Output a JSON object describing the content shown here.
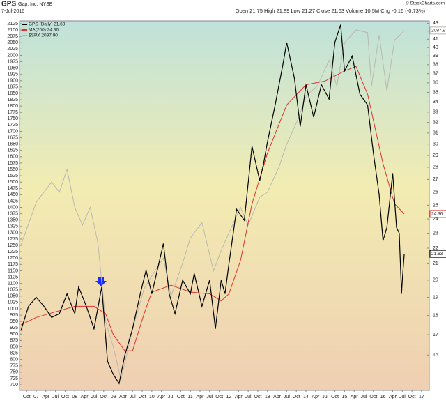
{
  "chart_data": {
    "type": "line",
    "title": "GPS",
    "subtitle": "Gap, Inc. NYSE",
    "date": "7-Jul-2016",
    "quote": "Open 21.75  High 21.89  Low 21.27  Close 21.63  Volume 10.5M  Chg -0.16 (-0.73%)",
    "source": "© StockCharts.com",
    "grid": false,
    "legend": "top-left",
    "xlim": [
      2006.566,
      2017.2
    ],
    "xticks": [
      {
        "value": 2006.75,
        "label": "Oct"
      },
      {
        "value": 2007,
        "label": "07"
      },
      {
        "value": 2007.25,
        "label": "Apr"
      },
      {
        "value": 2007.5,
        "label": "Jul"
      },
      {
        "value": 2007.75,
        "label": "Oct"
      },
      {
        "value": 2008,
        "label": "08"
      },
      {
        "value": 2008.25,
        "label": "Apr"
      },
      {
        "value": 2008.5,
        "label": "Jul"
      },
      {
        "value": 2008.75,
        "label": "Oct"
      },
      {
        "value": 2009,
        "label": "09"
      },
      {
        "value": 2009.25,
        "label": "Apr"
      },
      {
        "value": 2009.5,
        "label": "Jul"
      },
      {
        "value": 2009.75,
        "label": "Oct"
      },
      {
        "value": 2010,
        "label": "10"
      },
      {
        "value": 2010.25,
        "label": "Apr"
      },
      {
        "value": 2010.5,
        "label": "Jul"
      },
      {
        "value": 2010.75,
        "label": "Oct"
      },
      {
        "value": 2011,
        "label": "11"
      },
      {
        "value": 2011.25,
        "label": "Apr"
      },
      {
        "value": 2011.5,
        "label": "Jul"
      },
      {
        "value": 2011.75,
        "label": "Oct"
      },
      {
        "value": 2012,
        "label": "12"
      },
      {
        "value": 2012.25,
        "label": "Apr"
      },
      {
        "value": 2012.5,
        "label": "Jul"
      },
      {
        "value": 2012.75,
        "label": "Oct"
      },
      {
        "value": 2013,
        "label": "13"
      },
      {
        "value": 2013.25,
        "label": "Apr"
      },
      {
        "value": 2013.5,
        "label": "Jul"
      },
      {
        "value": 2013.75,
        "label": "Oct"
      },
      {
        "value": 2014,
        "label": "14"
      },
      {
        "value": 2014.25,
        "label": "Apr"
      },
      {
        "value": 2014.5,
        "label": "Jul"
      },
      {
        "value": 2014.75,
        "label": "Oct"
      },
      {
        "value": 2015,
        "label": "15"
      },
      {
        "value": 2015.25,
        "label": "Apr"
      },
      {
        "value": 2015.5,
        "label": "Jul"
      },
      {
        "value": 2015.75,
        "label": "Oct"
      },
      {
        "value": 2016,
        "label": "16"
      },
      {
        "value": 2016.25,
        "label": "Apr"
      },
      {
        "value": 2016.5,
        "label": "Jul"
      },
      {
        "value": 2016.75,
        "label": "Oct"
      },
      {
        "value": 2017,
        "label": "17"
      }
    ],
    "ylim": [
      678,
      2136
    ],
    "yticks": [
      700,
      725,
      750,
      775,
      800,
      825,
      850,
      875,
      900,
      925,
      950,
      975,
      1000,
      1025,
      1050,
      1075,
      1100,
      1125,
      1150,
      1175,
      1200,
      1225,
      1250,
      1275,
      1300,
      1325,
      1350,
      1375,
      1400,
      1425,
      1450,
      1475,
      1500,
      1525,
      1550,
      1575,
      1600,
      1625,
      1650,
      1675,
      1700,
      1725,
      1750,
      1775,
      1800,
      1825,
      1850,
      1875,
      1900,
      1925,
      1950,
      1975,
      2000,
      2025,
      2050,
      2075,
      2100,
      2125
    ],
    "y2lim": [
      14.4,
      43.3
    ],
    "y2log": true,
    "y2ticks": [
      16,
      17,
      18,
      19,
      20,
      21,
      22,
      23,
      24,
      25,
      26,
      27,
      28,
      29,
      30,
      31,
      32,
      33,
      34,
      35,
      36,
      37,
      38,
      39,
      40,
      41,
      42,
      43
    ],
    "series": [
      {
        "name": "$SPX 2097.90",
        "color": "#b8b8b0",
        "axis": "y",
        "end_label": "2097.9",
        "x": [
          2006.6,
          2007.0,
          2007.4,
          2007.6,
          2007.8,
          2008.0,
          2008.2,
          2008.4,
          2008.6,
          2008.8,
          2009.0,
          2009.2,
          2009.5,
          2009.8,
          2010.0,
          2010.3,
          2010.5,
          2010.8,
          2011.0,
          2011.3,
          2011.6,
          2011.8,
          2012.0,
          2012.3,
          2012.5,
          2012.8,
          2013.0,
          2013.3,
          2013.5,
          2013.8,
          2014.0,
          2014.3,
          2014.6,
          2014.8,
          2015.0,
          2015.3,
          2015.6,
          2015.7,
          2015.9,
          2016.1,
          2016.3,
          2016.55
        ],
        "values": [
          1250,
          1420,
          1500,
          1460,
          1550,
          1400,
          1330,
          1400,
          1260,
          950,
          850,
          720,
          920,
          1080,
          1130,
          1200,
          1050,
          1180,
          1280,
          1340,
          1150,
          1230,
          1300,
          1400,
          1330,
          1440,
          1460,
          1560,
          1650,
          1750,
          1840,
          1880,
          1980,
          1880,
          2050,
          2100,
          2090,
          1880,
          2080,
          1860,
          2060,
          2097.9
        ]
      },
      {
        "name": "MA(200) 24.36",
        "color": "#e03030",
        "axis": "y2",
        "end_label": "24.36",
        "x": [
          2006.6,
          2007.0,
          2007.5,
          2008.0,
          2008.5,
          2008.8,
          2009.0,
          2009.3,
          2009.5,
          2009.8,
          2010.0,
          2010.5,
          2011.0,
          2011.5,
          2011.8,
          2012.0,
          2012.3,
          2012.6,
          2013.0,
          2013.5,
          2014.0,
          2014.5,
          2015.0,
          2015.3,
          2015.6,
          2016.0,
          2016.3,
          2016.55
        ],
        "values": [
          17.5,
          17.9,
          18.2,
          18.5,
          18.5,
          18.1,
          17.0,
          16.2,
          16.2,
          18.1,
          19.3,
          19.7,
          19.3,
          19.2,
          18.8,
          19.2,
          21.2,
          25.1,
          29.2,
          33.7,
          35.8,
          36.2,
          37.3,
          37.8,
          34.8,
          28.3,
          25.1,
          24.36
        ]
      },
      {
        "name": "GPS (Daily) 21.63",
        "color": "#000000",
        "axis": "y2",
        "end_label": "21.63",
        "x": [
          2006.6,
          2006.8,
          2007.0,
          2007.2,
          2007.4,
          2007.6,
          2007.8,
          2008.0,
          2008.1,
          2008.3,
          2008.5,
          2008.7,
          2008.85,
          2009.0,
          2009.15,
          2009.3,
          2009.5,
          2009.7,
          2009.85,
          2010.0,
          2010.2,
          2010.3,
          2010.45,
          2010.6,
          2010.8,
          2011.0,
          2011.1,
          2011.3,
          2011.5,
          2011.65,
          2011.8,
          2011.9,
          2012.0,
          2012.2,
          2012.4,
          2012.6,
          2012.8,
          2012.9,
          2013.0,
          2013.2,
          2013.4,
          2013.5,
          2013.7,
          2013.85,
          2014.0,
          2014.2,
          2014.4,
          2014.6,
          2014.75,
          2014.9,
          2015.0,
          2015.2,
          2015.4,
          2015.6,
          2015.75,
          2015.9,
          2016.0,
          2016.1,
          2016.25,
          2016.35,
          2016.42,
          2016.48,
          2016.5,
          2016.55
        ],
        "values": [
          17.2,
          18.5,
          19.0,
          18.5,
          17.9,
          18.1,
          19.2,
          18.1,
          19.6,
          18.5,
          17.3,
          19.6,
          15.7,
          15.1,
          14.7,
          16.0,
          17.3,
          19.2,
          20.6,
          19.2,
          21.2,
          22.3,
          19.2,
          18.1,
          20.0,
          19.2,
          20.4,
          18.5,
          20.0,
          17.3,
          20.0,
          19.2,
          21.0,
          24.7,
          23.9,
          29.8,
          26.9,
          28.3,
          30.2,
          33.7,
          38.0,
          40.6,
          36.5,
          31.6,
          35.8,
          32.5,
          35.8,
          34.3,
          40.6,
          42.8,
          37.3,
          39.0,
          34.8,
          33.7,
          29.2,
          25.8,
          22.5,
          23.4,
          27.5,
          23.4,
          23.0,
          19.2,
          20.0,
          21.63
        ]
      }
    ]
  }
}
